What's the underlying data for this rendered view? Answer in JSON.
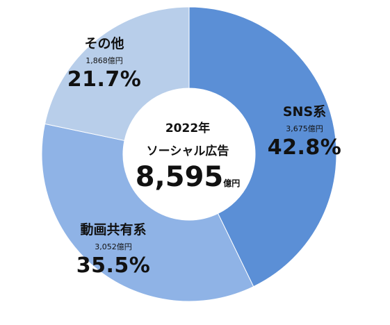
{
  "chart_data": {
    "type": "pie",
    "variant": "donut",
    "center_text": {
      "year": "2022年",
      "category": "ソーシャル広告",
      "total": "8,595",
      "unit": "億円"
    },
    "slices": [
      {
        "name": "SNS系",
        "amount": "3,675億円",
        "percent_label": "42.8%",
        "value": 42.8,
        "color": "#5b8fd6"
      },
      {
        "name": "動画共有系",
        "amount": "3,052億円",
        "percent_label": "35.5%",
        "value": 35.5,
        "color": "#8fb3e6"
      },
      {
        "name": "その他",
        "amount": "1,868億円",
        "percent_label": "21.7%",
        "value": 21.7,
        "color": "#b8ceea"
      }
    ],
    "start_angle": "12 o'clock",
    "direction": "clockwise"
  }
}
